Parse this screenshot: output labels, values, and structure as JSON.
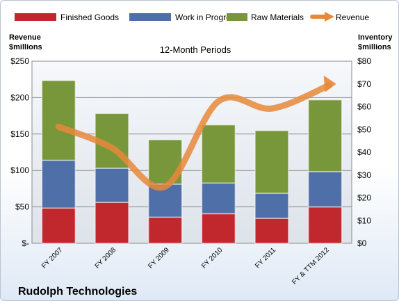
{
  "chart_data": {
    "type": "bar",
    "subtitle": "12-Month Periods",
    "company": "Rudolph Technologies",
    "left_axis_title": [
      "Revenue",
      "$millions"
    ],
    "right_axis_title": [
      "Inventory",
      "$millions"
    ],
    "left_ylim": [
      0,
      250
    ],
    "right_ylim": [
      0,
      80
    ],
    "left_ticks": [
      "$-",
      "$50",
      "$100",
      "$150",
      "$200",
      "$250"
    ],
    "right_ticks": [
      "$0",
      "$10",
      "$20",
      "$30",
      "$40",
      "$50",
      "$60",
      "$70",
      "$80"
    ],
    "categories": [
      "FY 2007",
      "FY 2008",
      "FY 2009",
      "FY 2010",
      "FY 2011",
      "FY & TTM 2012"
    ],
    "series": [
      {
        "name": "Finished Goods",
        "color": "#c0282d",
        "axis": "right",
        "values": [
          15.5,
          18,
          11.5,
          13,
          11,
          16
        ]
      },
      {
        "name": "Work in Progress",
        "color": "#4f6fa8",
        "axis": "right",
        "values": [
          21,
          15,
          14.5,
          13.5,
          11,
          15.5
        ]
      },
      {
        "name": "Raw Materials",
        "color": "#78963a",
        "axis": "right",
        "values": [
          35,
          24,
          19.5,
          25.5,
          27.5,
          31.5
        ]
      },
      {
        "name": "Revenue",
        "color": "#e8883a",
        "axis": "left",
        "values": [
          160,
          131,
          78,
          195,
          185,
          215
        ]
      }
    ],
    "grid": true,
    "legend": "top"
  }
}
